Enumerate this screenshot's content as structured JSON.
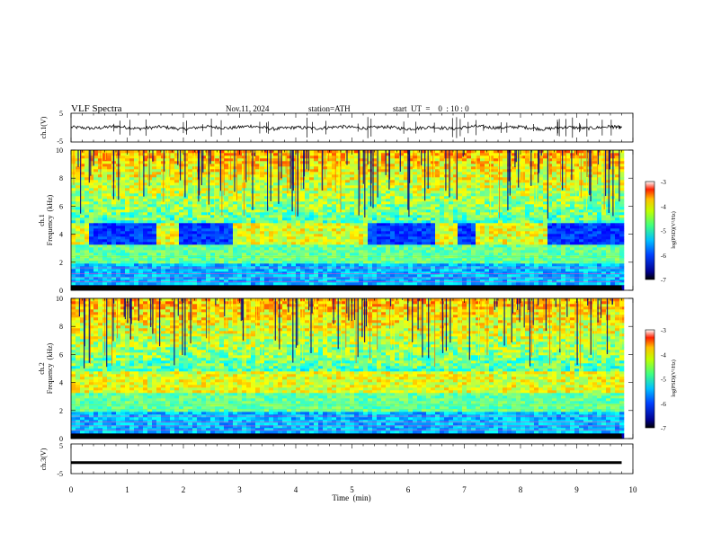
{
  "header": {
    "title": "VLF  Spectra",
    "date": "Nov.11, 2024",
    "station": "station=ATH",
    "start": "start  UT  =    0  : 10 : 0"
  },
  "chart_data": [
    {
      "type": "line",
      "id": "ch1-waveform",
      "ylabel": "ch.1(V)",
      "ylim": [
        -5,
        5
      ],
      "yticks": [
        "5",
        "-5"
      ],
      "color": "#000000",
      "x": [
        0,
        0.4,
        0.8,
        1.2,
        1.6,
        2.0,
        2.4,
        2.8,
        3.2,
        3.6,
        4.0,
        4.4,
        4.8,
        5.2,
        5.6,
        6.0,
        6.4,
        6.8,
        7.2,
        7.6,
        8.0,
        8.4,
        8.8,
        9.2,
        9.6,
        9.8
      ],
      "y": [
        0.2,
        -0.3,
        0.5,
        -0.4,
        0.3,
        -0.6,
        0.4,
        -0.2,
        0.6,
        -0.5,
        0.1,
        -0.3,
        0.4,
        -0.2,
        0.3,
        -0.5,
        0.2,
        -0.4,
        0.5,
        -0.1,
        0.3,
        -0.6,
        0.2,
        -0.3,
        0.4,
        0.0
      ]
    },
    {
      "type": "heatmap",
      "id": "ch1-spectrogram",
      "ylabel": "ch.1",
      "ylabel2": "Frequency  (kHz)",
      "ylim": [
        0,
        10
      ],
      "yticks": [
        "0",
        "2",
        "4",
        "6",
        "8",
        "10"
      ],
      "clim": [
        -7,
        -3
      ],
      "colorbar_label": "log(PSD)(V²/Hz)",
      "colorbar_ticks": [
        "-3",
        "-4",
        "-5",
        "-6",
        "-7"
      ],
      "quiet_4khz_windows": [
        [
          0.3,
          1.5
        ],
        [
          1.9,
          2.85
        ],
        [
          5.3,
          6.45
        ],
        [
          6.85,
          7.2
        ],
        [
          8.5,
          9.8
        ]
      ]
    },
    {
      "type": "heatmap",
      "id": "ch2-spectrogram",
      "ylabel": "ch.2",
      "ylabel2": "Frequency  (kHz)",
      "ylim": [
        0,
        10
      ],
      "yticks": [
        "0",
        "2",
        "4",
        "6",
        "8",
        "10"
      ],
      "clim": [
        -7,
        -3
      ],
      "colorbar_label": "log(PSD)(V²/Hz)",
      "colorbar_ticks": [
        "-3",
        "-4",
        "-5",
        "-6",
        "-7"
      ]
    },
    {
      "type": "line",
      "id": "ch3-waveform",
      "ylabel": "ch.3(V)",
      "ylim": [
        -5,
        5
      ],
      "yticks": [
        "5",
        "-5"
      ],
      "color": "#000000",
      "x": [
        0,
        9.8
      ],
      "y": [
        -1.4,
        -1.4
      ]
    }
  ],
  "xaxis": {
    "xlabel": "Time  (min)",
    "xlim": [
      0,
      10
    ],
    "ticks": [
      "0",
      "1",
      "2",
      "3",
      "4",
      "5",
      "6",
      "7",
      "8",
      "9",
      "10"
    ]
  }
}
